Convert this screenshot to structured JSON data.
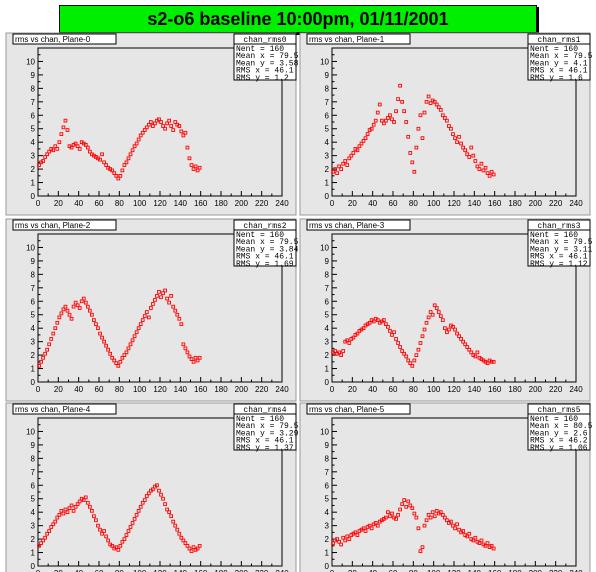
{
  "header": {
    "title": "s2-o6 baseline 10:00pm, 01/11/2001"
  },
  "chart_data": [
    {
      "type": "scatter",
      "title": "rms vs chan, Plane-0",
      "xlim": [
        0,
        240
      ],
      "ylim": [
        0,
        11
      ],
      "stats": {
        "name": "chan_rms0",
        "lines": [
          "Nent = 160",
          "Mean x = 79.5",
          "Mean y = 3.58",
          "RMS x = 46.1",
          "RMS y = 1.2"
        ]
      },
      "x": [
        1,
        3,
        5,
        7,
        9,
        11,
        13,
        15,
        17,
        19,
        21,
        23,
        25,
        27,
        29,
        31,
        33,
        35,
        37,
        39,
        41,
        43,
        45,
        47,
        49,
        51,
        53,
        55,
        57,
        59,
        61,
        63,
        65,
        67,
        69,
        71,
        73,
        75,
        77,
        79,
        81,
        83,
        85,
        87,
        89,
        91,
        93,
        95,
        97,
        99,
        101,
        103,
        105,
        107,
        109,
        111,
        113,
        115,
        117,
        119,
        121,
        123,
        125,
        127,
        129,
        131,
        133,
        135,
        137,
        139,
        141,
        143,
        145,
        147,
        149,
        151,
        153,
        155,
        157,
        159
      ],
      "y": [
        2.3,
        2.5,
        2.6,
        2.9,
        3.1,
        3.3,
        3.5,
        3.4,
        3.7,
        3.5,
        4.0,
        4.6,
        5.1,
        5.6,
        4.9,
        3.7,
        3.6,
        3.8,
        3.9,
        3.7,
        3.5,
        4.0,
        3.9,
        3.8,
        3.6,
        3.3,
        3.1,
        3.0,
        2.9,
        2.8,
        2.7,
        3.1,
        2.5,
        2.3,
        2.1,
        2.0,
        1.9,
        1.7,
        1.5,
        1.3,
        1.5,
        1.9,
        2.3,
        2.5,
        2.8,
        3.1,
        3.4,
        3.7,
        3.9,
        4.2,
        4.5,
        4.7,
        4.9,
        5.1,
        5.3,
        5.5,
        5.2,
        5.4,
        5.6,
        5.7,
        5.5,
        5.2,
        5.0,
        5.4,
        5.6,
        5.2,
        4.9,
        5.5,
        5.3,
        5.2,
        4.8,
        4.5,
        4.7,
        3.6,
        2.8,
        2.3,
        2.0,
        2.2,
        1.9,
        2.1
      ]
    },
    {
      "type": "scatter",
      "title": "rms vs chan, Plane-1",
      "xlim": [
        0,
        240
      ],
      "ylim": [
        0,
        11
      ],
      "stats": {
        "name": "chan_rms1",
        "lines": [
          "Nent = 160",
          "Mean x = 79.5",
          "Mean y = 4.1",
          "RMS x = 46.1",
          "RMS y = 1.6"
        ]
      },
      "x": [
        1,
        3,
        5,
        7,
        9,
        11,
        13,
        15,
        17,
        19,
        21,
        23,
        25,
        27,
        29,
        31,
        33,
        35,
        37,
        39,
        41,
        43,
        45,
        47,
        49,
        51,
        53,
        55,
        57,
        59,
        61,
        63,
        65,
        67,
        69,
        71,
        73,
        75,
        77,
        79,
        81,
        83,
        85,
        87,
        89,
        91,
        93,
        95,
        97,
        99,
        101,
        103,
        105,
        107,
        109,
        111,
        113,
        115,
        117,
        119,
        121,
        123,
        125,
        127,
        129,
        131,
        133,
        135,
        137,
        139,
        141,
        143,
        145,
        147,
        149,
        151,
        153,
        155,
        157,
        159
      ],
      "y": [
        1.8,
        2.0,
        1.7,
        2.2,
        2.0,
        2.4,
        2.6,
        2.3,
        2.8,
        3.0,
        3.2,
        3.5,
        3.4,
        3.7,
        3.9,
        4.1,
        4.3,
        4.6,
        4.9,
        5.0,
        5.3,
        5.6,
        6.2,
        6.8,
        5.6,
        5.4,
        5.6,
        5.8,
        6.0,
        5.7,
        5.5,
        6.3,
        7.2,
        8.2,
        7.0,
        6.3,
        5.5,
        4.4,
        3.2,
        2.5,
        1.8,
        3.6,
        5.0,
        6.0,
        4.3,
        6.2,
        7.0,
        7.4,
        6.9,
        7.1,
        7.0,
        6.8,
        6.6,
        6.4,
        6.0,
        5.8,
        5.6,
        5.2,
        5.0,
        4.6,
        4.3,
        4.0,
        4.4,
        3.9,
        3.6,
        3.4,
        3.1,
        2.9,
        3.6,
        3.0,
        2.6,
        2.2,
        2.0,
        2.4,
        1.9,
        2.1,
        1.7,
        1.5,
        1.8,
        1.6
      ]
    },
    {
      "type": "scatter",
      "title": "rms vs chan, Plane-2",
      "xlim": [
        0,
        240
      ],
      "ylim": [
        0,
        11
      ],
      "stats": {
        "name": "chan_rms2",
        "lines": [
          "Nent = 160",
          "Mean x = 79.5",
          "Mean y = 3.84",
          "RMS x = 46.1",
          "RMS y = 1.69"
        ]
      },
      "x": [
        1,
        3,
        5,
        7,
        9,
        11,
        13,
        15,
        17,
        19,
        21,
        23,
        25,
        27,
        29,
        31,
        33,
        35,
        37,
        39,
        41,
        43,
        45,
        47,
        49,
        51,
        53,
        55,
        57,
        59,
        61,
        63,
        65,
        67,
        69,
        71,
        73,
        75,
        77,
        79,
        81,
        83,
        85,
        87,
        89,
        91,
        93,
        95,
        97,
        99,
        101,
        103,
        105,
        107,
        109,
        111,
        113,
        115,
        117,
        119,
        121,
        123,
        125,
        127,
        129,
        131,
        133,
        135,
        137,
        139,
        141,
        143,
        145,
        147,
        149,
        151,
        153,
        155,
        157,
        159
      ],
      "y": [
        1.2,
        1.5,
        1.8,
        2.1,
        2.4,
        2.8,
        3.2,
        3.6,
        4.0,
        4.4,
        4.8,
        5.1,
        5.4,
        5.6,
        5.3,
        5.0,
        4.7,
        5.6,
        5.9,
        5.7,
        5.5,
        6.0,
        6.2,
        5.9,
        5.6,
        5.3,
        5.0,
        4.6,
        4.3,
        4.0,
        3.6,
        3.3,
        3.0,
        2.7,
        2.4,
        2.1,
        1.8,
        1.6,
        1.4,
        1.2,
        1.5,
        1.8,
        2.0,
        2.2,
        2.5,
        2.8,
        3.1,
        3.4,
        3.7,
        4.0,
        4.3,
        4.6,
        4.9,
        5.2,
        4.8,
        5.5,
        5.8,
        6.1,
        6.4,
        6.7,
        6.3,
        6.6,
        6.8,
        6.2,
        5.9,
        6.4,
        5.6,
        5.3,
        5.0,
        4.7,
        4.3,
        2.8,
        2.5,
        2.2,
        1.9,
        1.7,
        1.5,
        1.8,
        1.6,
        1.8
      ]
    },
    {
      "type": "scatter",
      "title": "rms vs chan, Plane-3",
      "xlim": [
        0,
        240
      ],
      "ylim": [
        0,
        11
      ],
      "stats": {
        "name": "chan_rms3",
        "lines": [
          "Nent = 160",
          "Mean x = 79.5",
          "Mean y = 3.11",
          "RMS x = 46.1",
          "RMS y = 1.12"
        ]
      },
      "x": [
        1,
        3,
        5,
        7,
        9,
        11,
        13,
        15,
        17,
        19,
        21,
        23,
        25,
        27,
        29,
        31,
        33,
        35,
        37,
        39,
        41,
        43,
        45,
        47,
        49,
        51,
        53,
        55,
        57,
        59,
        61,
        63,
        65,
        67,
        69,
        71,
        73,
        75,
        77,
        79,
        81,
        83,
        85,
        87,
        89,
        91,
        93,
        95,
        97,
        99,
        101,
        103,
        105,
        107,
        109,
        111,
        113,
        115,
        117,
        119,
        121,
        123,
        125,
        127,
        129,
        131,
        133,
        135,
        137,
        139,
        141,
        143,
        145,
        147,
        149,
        151,
        153,
        155,
        157,
        159
      ],
      "y": [
        2.2,
        2.3,
        2.1,
        2.2,
        2.0,
        2.3,
        3.0,
        3.1,
        2.9,
        3.2,
        3.3,
        3.5,
        3.6,
        3.8,
        3.9,
        4.0,
        4.2,
        4.3,
        4.4,
        4.6,
        4.5,
        4.7,
        4.6,
        4.4,
        4.5,
        4.6,
        4.3,
        4.1,
        3.8,
        3.5,
        3.7,
        3.2,
        2.9,
        2.6,
        2.3,
        2.1,
        1.9,
        1.6,
        1.4,
        1.2,
        1.6,
        2.0,
        2.4,
        2.9,
        3.4,
        3.9,
        4.4,
        4.8,
        5.2,
        5.0,
        5.7,
        5.5,
        5.2,
        4.9,
        4.6,
        4.0,
        3.7,
        3.9,
        4.2,
        4.1,
        3.9,
        3.6,
        3.4,
        3.2,
        3.0,
        2.8,
        2.6,
        2.4,
        2.2,
        2.0,
        1.9,
        2.2,
        1.8,
        1.7,
        1.6,
        1.5,
        1.4,
        1.6,
        1.5,
        1.5
      ]
    },
    {
      "type": "scatter",
      "title": "rms vs chan, Plane-4",
      "xlim": [
        0,
        240
      ],
      "ylim": [
        0,
        11
      ],
      "stats": {
        "name": "chan_rms4",
        "lines": [
          "Nent = 160",
          "Mean x = 79.5",
          "Mean y = 3.29",
          "RMS x = 46.1",
          "RMS y = 1.37"
        ]
      },
      "x": [
        1,
        3,
        5,
        7,
        9,
        11,
        13,
        15,
        17,
        19,
        21,
        23,
        25,
        27,
        29,
        31,
        33,
        35,
        37,
        39,
        41,
        43,
        45,
        47,
        49,
        51,
        53,
        55,
        57,
        59,
        61,
        63,
        65,
        67,
        69,
        71,
        73,
        75,
        77,
        79,
        81,
        83,
        85,
        87,
        89,
        91,
        93,
        95,
        97,
        99,
        101,
        103,
        105,
        107,
        109,
        111,
        113,
        115,
        117,
        119,
        121,
        123,
        125,
        127,
        129,
        131,
        133,
        135,
        137,
        139,
        141,
        143,
        145,
        147,
        149,
        151,
        153,
        155,
        157,
        159
      ],
      "y": [
        1.5,
        1.7,
        1.9,
        2.1,
        2.4,
        2.6,
        2.9,
        3.1,
        3.3,
        3.6,
        3.8,
        4.1,
        3.9,
        4.2,
        4.0,
        4.3,
        4.5,
        4.1,
        4.4,
        4.6,
        4.8,
        5.0,
        4.9,
        5.1,
        4.7,
        4.4,
        4.1,
        3.7,
        3.4,
        3.0,
        2.7,
        2.4,
        2.6,
        2.2,
        1.9,
        1.6,
        1.5,
        1.3,
        1.4,
        1.2,
        1.5,
        1.8,
        2.0,
        2.3,
        2.6,
        2.9,
        3.2,
        3.5,
        3.8,
        4.1,
        4.4,
        4.7,
        4.9,
        5.2,
        5.4,
        5.6,
        5.7,
        5.9,
        6.0,
        5.6,
        5.3,
        5.0,
        4.6,
        4.2,
        4.0,
        3.7,
        3.3,
        3.0,
        2.7,
        2.4,
        2.1,
        1.9,
        1.7,
        1.5,
        1.3,
        1.1,
        1.4,
        1.2,
        1.3,
        1.5
      ]
    },
    {
      "type": "scatter",
      "title": "rms vs chan, Plane-5",
      "xlim": [
        0,
        240
      ],
      "ylim": [
        0,
        11
      ],
      "stats": {
        "name": "chan_rms5",
        "lines": [
          "Nent = 160",
          "Mean x = 80.5",
          "Mean y = 2.6",
          "RMS x = 46.2",
          "RMS y = 1.06"
        ]
      },
      "x": [
        1,
        3,
        5,
        7,
        9,
        11,
        13,
        15,
        17,
        19,
        21,
        23,
        25,
        27,
        29,
        31,
        33,
        35,
        37,
        39,
        41,
        43,
        45,
        47,
        49,
        51,
        53,
        55,
        57,
        59,
        61,
        63,
        65,
        67,
        69,
        71,
        73,
        75,
        77,
        79,
        81,
        83,
        85,
        87,
        89,
        91,
        93,
        95,
        97,
        99,
        101,
        103,
        105,
        107,
        109,
        111,
        113,
        115,
        117,
        119,
        121,
        123,
        125,
        127,
        129,
        131,
        133,
        135,
        137,
        139,
        141,
        143,
        145,
        147,
        149,
        151,
        153,
        155,
        157,
        159
      ],
      "y": [
        1.7,
        1.9,
        2.0,
        1.8,
        1.6,
        2.1,
        1.9,
        2.2,
        2.0,
        2.3,
        2.4,
        2.5,
        2.3,
        2.6,
        2.7,
        2.8,
        2.6,
        2.9,
        3.0,
        2.8,
        3.1,
        3.2,
        3.0,
        3.3,
        3.4,
        3.5,
        3.6,
        4.0,
        3.7,
        3.9,
        3.6,
        3.5,
        3.8,
        4.2,
        4.6,
        4.9,
        4.4,
        4.8,
        4.5,
        4.3,
        3.9,
        3.6,
        2.8,
        1.1,
        1.4,
        3.0,
        3.4,
        3.8,
        3.6,
        4.0,
        3.7,
        4.1,
        3.9,
        4.0,
        3.8,
        3.6,
        3.4,
        3.2,
        3.3,
        3.0,
        2.8,
        3.1,
        2.7,
        2.5,
        2.6,
        2.3,
        2.2,
        2.4,
        2.0,
        1.9,
        2.1,
        1.8,
        1.7,
        1.9,
        1.6,
        1.5,
        1.7,
        1.4,
        1.5,
        1.3
      ]
    }
  ]
}
